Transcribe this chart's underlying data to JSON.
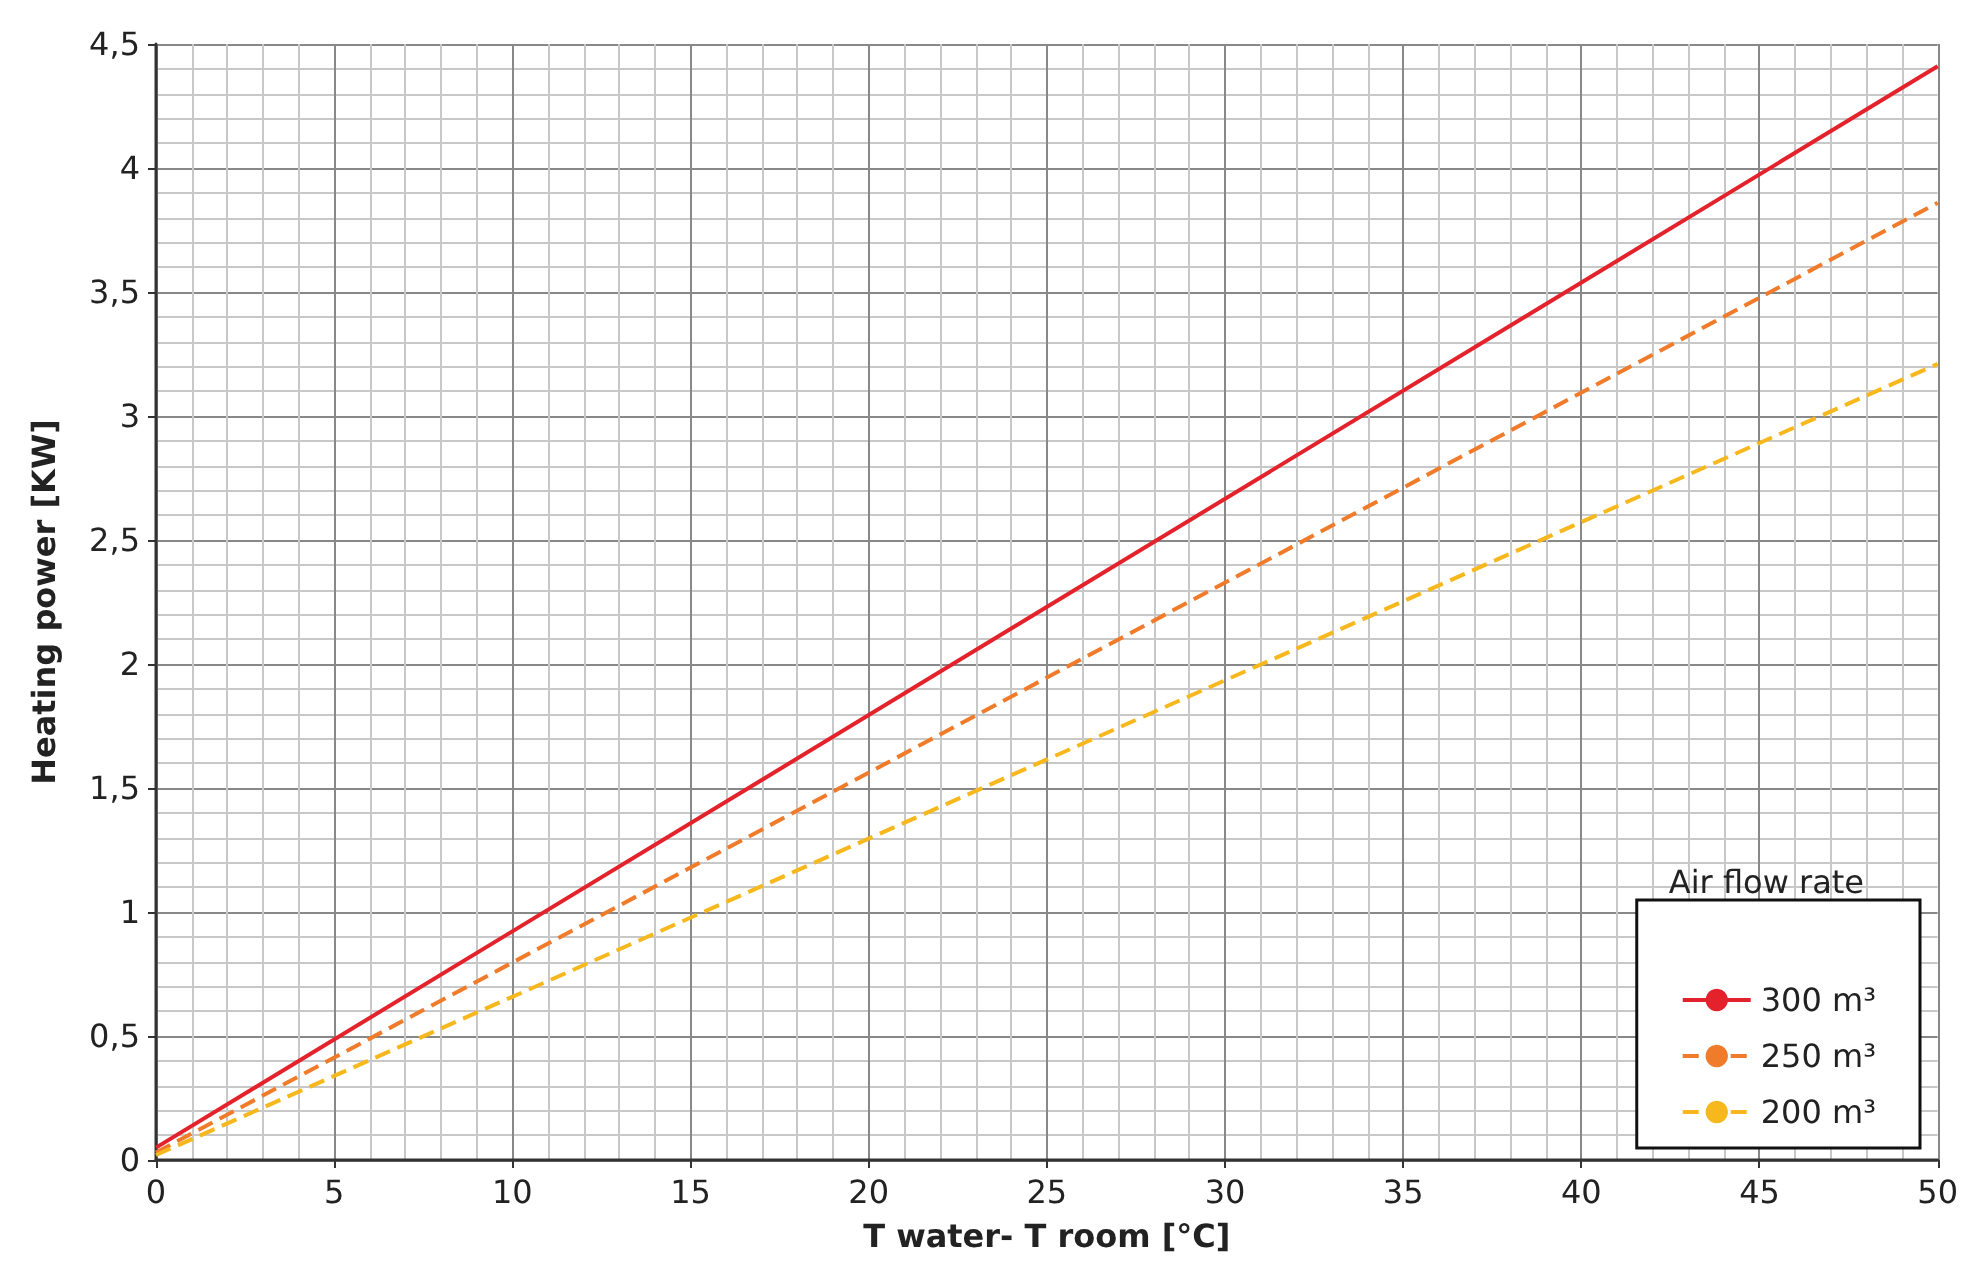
{
  "chart_data": {
    "type": "line",
    "xlabel": "T water- T room [°C]",
    "ylabel": "Heating power [KW]",
    "legend_title": "Air flow rate",
    "x": [
      0,
      50
    ],
    "series": [
      {
        "name": "300 m³",
        "color": "#e3222b",
        "values": [
          0.05,
          4.41
        ],
        "line_style": "solid"
      },
      {
        "name": "250 m³",
        "color": "#f07b2a",
        "values": [
          0.03,
          3.86
        ],
        "line_style": "dashed"
      },
      {
        "name": "200 m³",
        "color": "#f6b81c",
        "values": [
          0.02,
          3.21
        ],
        "line_style": "dashed"
      }
    ],
    "xlim": [
      0,
      50
    ],
    "xticks": [
      0,
      5,
      10,
      15,
      20,
      25,
      30,
      35,
      40,
      45,
      50
    ],
    "ylim": [
      0,
      4.5
    ],
    "yticks": [
      0,
      {
        "value": 0.5,
        "label": "0,5"
      },
      1,
      {
        "value": 1.5,
        "label": "1,5"
      },
      2,
      {
        "value": 2.5,
        "label": "2,5"
      },
      3,
      {
        "value": 3.5,
        "label": "3,5"
      },
      4,
      {
        "value": 4.5,
        "label": "4,5"
      }
    ],
    "grid": true,
    "legend": "bottom right",
    "marker": "none"
  }
}
